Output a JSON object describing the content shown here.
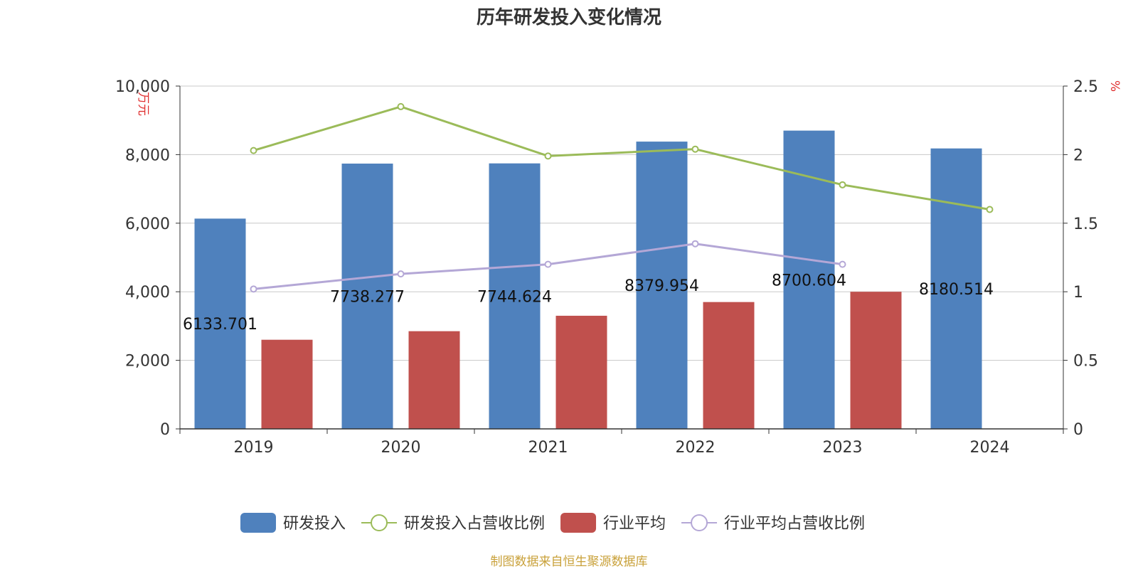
{
  "chart_data": {
    "type": "bar",
    "title": "历年研发投入变化情况",
    "categories": [
      "2019",
      "2020",
      "2021",
      "2022",
      "2023",
      "2024"
    ],
    "series": [
      {
        "name": "研发投入",
        "type": "bar",
        "axis": "left",
        "color": "#4f81bd",
        "values": [
          6133.701,
          7738.277,
          7744.624,
          8379.954,
          8700.604,
          8180.514
        ],
        "labels": [
          "6133.701",
          "7738.277",
          "7744.624",
          "8379.954",
          "8700.604",
          "8180.514"
        ]
      },
      {
        "name": "研发投入占营收比例",
        "type": "line",
        "axis": "right",
        "color": "#9bbb59",
        "values": [
          2.03,
          2.35,
          1.99,
          2.04,
          1.78,
          1.6
        ]
      },
      {
        "name": "行业平均",
        "type": "bar",
        "axis": "left",
        "color": "#c0504d",
        "values": [
          2600,
          2850,
          3300,
          3700,
          4000,
          null
        ]
      },
      {
        "name": "行业平均占营收比例",
        "type": "line",
        "axis": "right",
        "color": "#b4a7d6",
        "values": [
          1.02,
          1.13,
          1.2,
          1.35,
          1.2,
          null
        ]
      }
    ],
    "y_left": {
      "unit": "万元",
      "ylim": [
        0,
        10000
      ],
      "ticks": [
        "0",
        "2,000",
        "4,000",
        "6,000",
        "8,000",
        "10,000"
      ]
    },
    "y_right": {
      "unit": "%",
      "ylim": [
        0,
        2.5
      ],
      "ticks": [
        "0",
        "0.5",
        "1",
        "1.5",
        "2",
        "2.5"
      ]
    },
    "grid": true,
    "legend_position": "bottom"
  },
  "source": "制图数据来自恒生聚源数据库"
}
